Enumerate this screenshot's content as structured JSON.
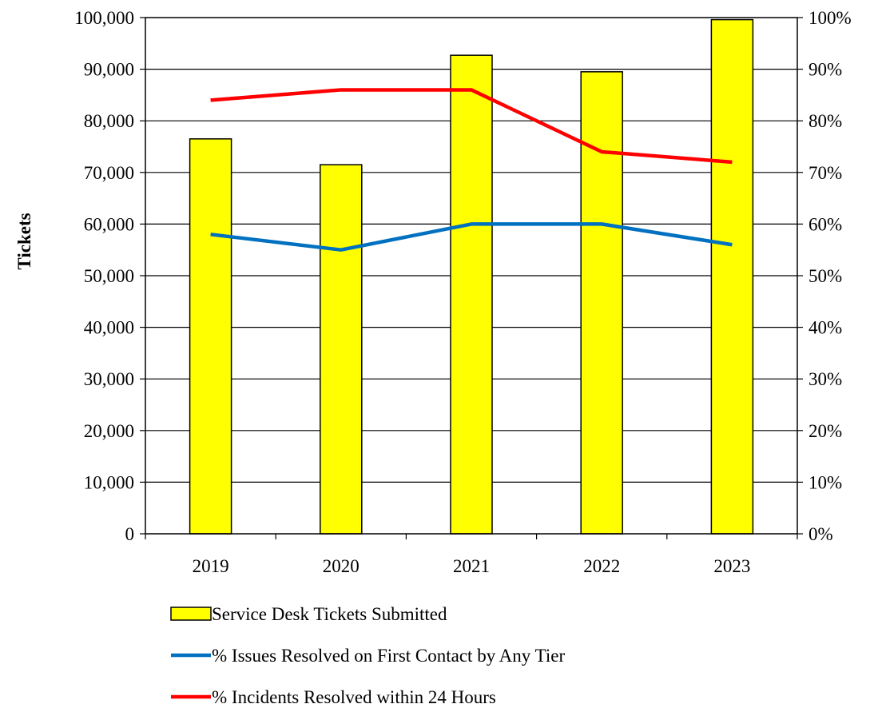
{
  "chart_data": {
    "type": "bar+line",
    "categories": [
      "2019",
      "2020",
      "2021",
      "2022",
      "2023"
    ],
    "y_left": {
      "label": "Tickets",
      "range": [
        0,
        100000
      ],
      "ticks": [
        0,
        10000,
        20000,
        30000,
        40000,
        50000,
        60000,
        70000,
        80000,
        90000,
        100000
      ],
      "tick_labels": [
        "0",
        "10,000",
        "20,000",
        "30,000",
        "40,000",
        "50,000",
        "60,000",
        "70,000",
        "80,000",
        "90,000",
        "100,000"
      ]
    },
    "y_right": {
      "range": [
        0,
        1
      ],
      "ticks": [
        0,
        0.1,
        0.2,
        0.3,
        0.4,
        0.5,
        0.6,
        0.7,
        0.8,
        0.9,
        1.0
      ],
      "tick_labels": [
        "0%",
        "10%",
        "20%",
        "30%",
        "40%",
        "50%",
        "60%",
        "70%",
        "80%",
        "90%",
        "100%"
      ]
    },
    "grid": true,
    "legend_position": "bottom",
    "series": [
      {
        "name": "Service Desk Tickets Submitted",
        "kind": "bar",
        "axis": "left",
        "color": "#ffff00",
        "values": [
          76500,
          71500,
          92700,
          89500,
          99600
        ]
      },
      {
        "name": "% Issues Resolved on First Contact by Any Tier",
        "kind": "line",
        "axis": "right",
        "color": "#0070c0",
        "values": [
          0.58,
          0.55,
          0.6,
          0.6,
          0.56
        ]
      },
      {
        "name": "% Incidents Resolved within 24 Hours",
        "kind": "line",
        "axis": "right",
        "color": "#ff0000",
        "values": [
          0.84,
          0.86,
          0.86,
          0.74,
          0.72
        ]
      }
    ]
  }
}
